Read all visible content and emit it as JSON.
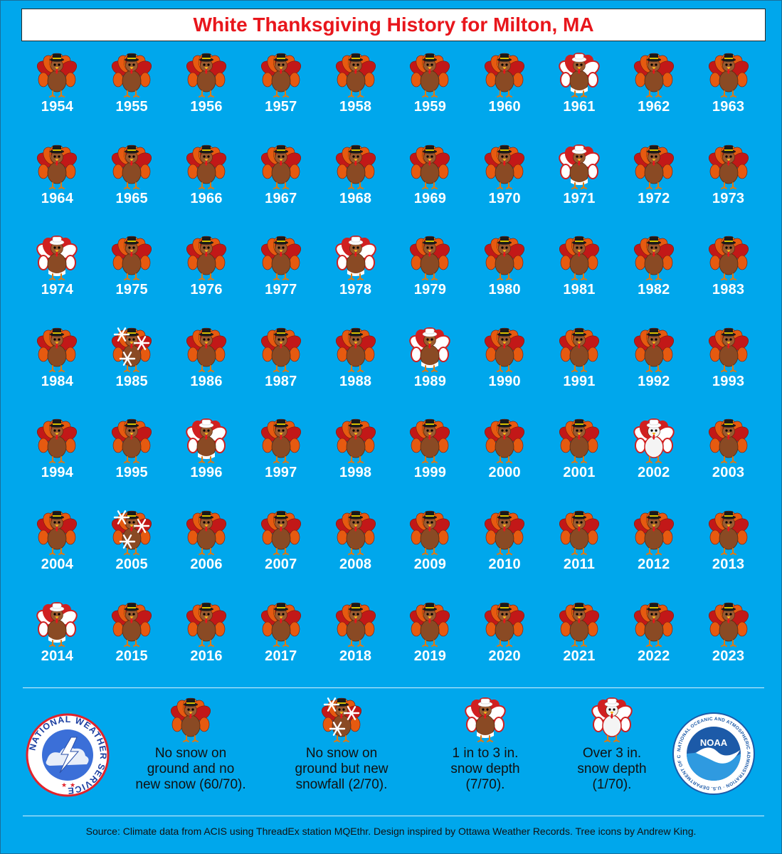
{
  "title": "White Thanksgiving History for Milton, MA",
  "colors": {
    "background": "#00a7ec",
    "title_text": "#e8161c",
    "year_text": "#ffffff",
    "legend_text": "#111111"
  },
  "years": [
    {
      "year": "1954",
      "icon": "turkey-icon",
      "category": "none"
    },
    {
      "year": "1955",
      "icon": "turkey-icon",
      "category": "none"
    },
    {
      "year": "1956",
      "icon": "turkey-icon",
      "category": "none"
    },
    {
      "year": "1957",
      "icon": "turkey-icon",
      "category": "none"
    },
    {
      "year": "1958",
      "icon": "turkey-icon",
      "category": "none"
    },
    {
      "year": "1959",
      "icon": "turkey-icon",
      "category": "none"
    },
    {
      "year": "1960",
      "icon": "turkey-icon",
      "category": "none"
    },
    {
      "year": "1961",
      "icon": "turkey-icon",
      "category": "depth1to3"
    },
    {
      "year": "1962",
      "icon": "turkey-icon",
      "category": "none"
    },
    {
      "year": "1963",
      "icon": "turkey-icon",
      "category": "none"
    },
    {
      "year": "1964",
      "icon": "turkey-icon",
      "category": "none"
    },
    {
      "year": "1965",
      "icon": "turkey-icon",
      "category": "none"
    },
    {
      "year": "1966",
      "icon": "turkey-icon",
      "category": "none"
    },
    {
      "year": "1967",
      "icon": "turkey-icon",
      "category": "none"
    },
    {
      "year": "1968",
      "icon": "turkey-icon",
      "category": "none"
    },
    {
      "year": "1969",
      "icon": "turkey-icon",
      "category": "none"
    },
    {
      "year": "1970",
      "icon": "turkey-icon",
      "category": "none"
    },
    {
      "year": "1971",
      "icon": "turkey-icon",
      "category": "depth1to3"
    },
    {
      "year": "1972",
      "icon": "turkey-icon",
      "category": "none"
    },
    {
      "year": "1973",
      "icon": "turkey-icon",
      "category": "none"
    },
    {
      "year": "1974",
      "icon": "turkey-icon",
      "category": "depth1to3"
    },
    {
      "year": "1975",
      "icon": "turkey-icon",
      "category": "none"
    },
    {
      "year": "1976",
      "icon": "turkey-icon",
      "category": "none"
    },
    {
      "year": "1977",
      "icon": "turkey-icon",
      "category": "none"
    },
    {
      "year": "1978",
      "icon": "turkey-icon",
      "category": "depth1to3"
    },
    {
      "year": "1979",
      "icon": "turkey-icon",
      "category": "none"
    },
    {
      "year": "1980",
      "icon": "turkey-icon",
      "category": "none"
    },
    {
      "year": "1981",
      "icon": "turkey-icon",
      "category": "none"
    },
    {
      "year": "1982",
      "icon": "turkey-icon",
      "category": "none"
    },
    {
      "year": "1983",
      "icon": "turkey-icon",
      "category": "none"
    },
    {
      "year": "1984",
      "icon": "turkey-icon",
      "category": "none"
    },
    {
      "year": "1985",
      "icon": "turkey-icon",
      "category": "newsnow"
    },
    {
      "year": "1986",
      "icon": "turkey-icon",
      "category": "none"
    },
    {
      "year": "1987",
      "icon": "turkey-icon",
      "category": "none"
    },
    {
      "year": "1988",
      "icon": "turkey-icon",
      "category": "none"
    },
    {
      "year": "1989",
      "icon": "turkey-icon",
      "category": "depth1to3"
    },
    {
      "year": "1990",
      "icon": "turkey-icon",
      "category": "none"
    },
    {
      "year": "1991",
      "icon": "turkey-icon",
      "category": "none"
    },
    {
      "year": "1992",
      "icon": "turkey-icon",
      "category": "none"
    },
    {
      "year": "1993",
      "icon": "turkey-icon",
      "category": "none"
    },
    {
      "year": "1994",
      "icon": "turkey-icon",
      "category": "none"
    },
    {
      "year": "1995",
      "icon": "turkey-icon",
      "category": "none"
    },
    {
      "year": "1996",
      "icon": "turkey-icon",
      "category": "depth1to3"
    },
    {
      "year": "1997",
      "icon": "turkey-icon",
      "category": "none"
    },
    {
      "year": "1998",
      "icon": "turkey-icon",
      "category": "none"
    },
    {
      "year": "1999",
      "icon": "turkey-icon",
      "category": "none"
    },
    {
      "year": "2000",
      "icon": "turkey-icon",
      "category": "none"
    },
    {
      "year": "2001",
      "icon": "turkey-icon",
      "category": "none"
    },
    {
      "year": "2002",
      "icon": "turkey-icon",
      "category": "over3"
    },
    {
      "year": "2003",
      "icon": "turkey-icon",
      "category": "none"
    },
    {
      "year": "2004",
      "icon": "turkey-icon",
      "category": "none"
    },
    {
      "year": "2005",
      "icon": "turkey-icon",
      "category": "newsnow"
    },
    {
      "year": "2006",
      "icon": "turkey-icon",
      "category": "none"
    },
    {
      "year": "2007",
      "icon": "turkey-icon",
      "category": "none"
    },
    {
      "year": "2008",
      "icon": "turkey-icon",
      "category": "none"
    },
    {
      "year": "2009",
      "icon": "turkey-icon",
      "category": "none"
    },
    {
      "year": "2010",
      "icon": "turkey-icon",
      "category": "none"
    },
    {
      "year": "2011",
      "icon": "turkey-icon",
      "category": "none"
    },
    {
      "year": "2012",
      "icon": "turkey-icon",
      "category": "none"
    },
    {
      "year": "2013",
      "icon": "turkey-icon",
      "category": "none"
    },
    {
      "year": "2014",
      "icon": "turkey-icon",
      "category": "depth1to3"
    },
    {
      "year": "2015",
      "icon": "turkey-icon",
      "category": "none"
    },
    {
      "year": "2016",
      "icon": "turkey-icon",
      "category": "none"
    },
    {
      "year": "2017",
      "icon": "turkey-icon",
      "category": "none"
    },
    {
      "year": "2018",
      "icon": "turkey-icon",
      "category": "none"
    },
    {
      "year": "2019",
      "icon": "turkey-icon",
      "category": "none"
    },
    {
      "year": "2020",
      "icon": "turkey-icon",
      "category": "none"
    },
    {
      "year": "2021",
      "icon": "turkey-icon",
      "category": "none"
    },
    {
      "year": "2022",
      "icon": "turkey-icon",
      "category": "none"
    },
    {
      "year": "2023",
      "icon": "turkey-icon",
      "category": "none"
    }
  ],
  "legend": [
    {
      "category": "none",
      "icon": "turkey-icon",
      "text": "No snow on\nground and no\nnew snow (60/70)."
    },
    {
      "category": "newsnow",
      "icon": "snowflake-turkey-icon",
      "text": "No snow on\nground but new\nsnowfall (2/70)."
    },
    {
      "category": "depth1to3",
      "icon": "snowy-turkey-icon",
      "text": "1 in to 3 in.\nsnow depth\n(7/70)."
    },
    {
      "category": "over3",
      "icon": "snow-covered-turkey-icon",
      "text": "Over 3 in.\nsnow depth\n(1/70)."
    }
  ],
  "logos": {
    "nws_text": "NATIONAL WEATHER SERVICE",
    "noaa_center": "NOAA",
    "noaa_ring": "NATIONAL OCEANIC AND ATMOSPHERIC ADMINISTRATION · U.S. DEPARTMENT OF COMMERCE"
  },
  "source": "Source: Climate data from ACIS using ThreadEx station MQEthr. Design inspired by Ottawa Weather Records. Tree icons by Andrew King."
}
